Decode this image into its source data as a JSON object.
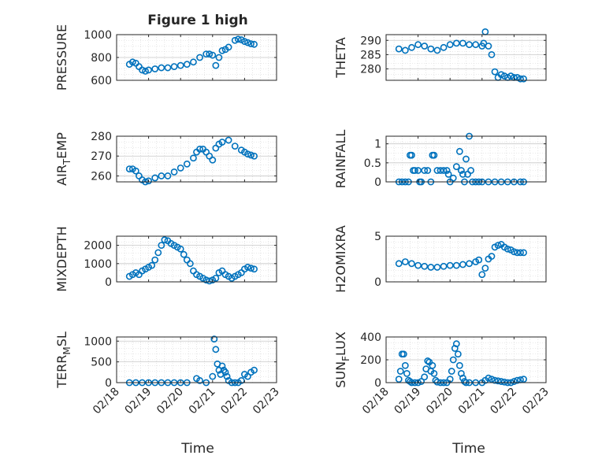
{
  "figure": {
    "title": "Figure 1 high",
    "xlabel": "Time",
    "marker_color": "#0072BD",
    "axis_color": "#262626",
    "grid_color": "#d3d3d3"
  },
  "chart_data": [
    {
      "type": "scatter",
      "ylabel": "PRESSURE",
      "ylim": [
        600,
        1000
      ],
      "yticks": [
        "600",
        "800",
        "1000"
      ],
      "xlim": [
        "2000-02-18",
        "2000-02-23"
      ],
      "xticks": [
        "02/18",
        "02/19",
        "02/20",
        "02/21",
        "02/22",
        "02/23"
      ],
      "grid": true,
      "x": [
        18.4,
        18.5,
        18.6,
        18.7,
        18.8,
        18.9,
        19.0,
        19.2,
        19.4,
        19.6,
        19.8,
        20.0,
        20.2,
        20.4,
        20.6,
        20.8,
        20.9,
        21.0,
        21.1,
        21.2,
        21.3,
        21.4,
        21.5,
        21.7,
        21.8,
        21.9,
        22.0,
        22.1,
        22.2,
        22.3
      ],
      "y": [
        740,
        760,
        750,
        720,
        690,
        680,
        690,
        700,
        710,
        710,
        720,
        730,
        740,
        760,
        800,
        830,
        830,
        820,
        730,
        800,
        860,
        870,
        890,
        950,
        960,
        955,
        940,
        930,
        920,
        915
      ]
    },
    {
      "type": "scatter",
      "ylabel": "THETA",
      "ylim": [
        276,
        292
      ],
      "yticks": [
        "280",
        "285",
        "290"
      ],
      "xlim": [
        "2000-02-18",
        "2000-02-23"
      ],
      "xticks": [
        "02/18",
        "02/19",
        "02/20",
        "02/21",
        "02/22",
        "02/23"
      ],
      "grid": true,
      "x": [
        18.4,
        18.6,
        18.8,
        19.0,
        19.2,
        19.4,
        19.6,
        19.8,
        20.0,
        20.2,
        20.4,
        20.6,
        20.8,
        21.0,
        21.05,
        21.1,
        21.2,
        21.3,
        21.4,
        21.5,
        21.6,
        21.7,
        21.8,
        21.9,
        22.0,
        22.1,
        22.2,
        22.3
      ],
      "y": [
        287,
        286.5,
        287.5,
        288.5,
        288,
        287,
        286.5,
        287.5,
        288.5,
        289,
        289,
        288.5,
        288.5,
        288,
        289,
        293,
        288,
        285,
        279,
        277,
        278,
        277.5,
        277,
        277.5,
        277,
        277,
        276.5,
        276.5
      ]
    },
    {
      "type": "scatter",
      "ylabel": "AIR_TEMP",
      "ylim": [
        257,
        280
      ],
      "yticks": [
        "260",
        "270",
        "280"
      ],
      "xlim": [
        "2000-02-18",
        "2000-02-23"
      ],
      "xticks": [
        "02/18",
        "02/19",
        "02/20",
        "02/21",
        "02/22",
        "02/23"
      ],
      "grid": true,
      "x": [
        18.4,
        18.5,
        18.6,
        18.7,
        18.8,
        18.9,
        19.0,
        19.2,
        19.4,
        19.6,
        19.8,
        20.0,
        20.2,
        20.4,
        20.5,
        20.6,
        20.7,
        20.8,
        20.9,
        21.0,
        21.1,
        21.2,
        21.3,
        21.5,
        21.7,
        21.9,
        22.0,
        22.1,
        22.2,
        22.3
      ],
      "y": [
        263.5,
        263.5,
        262.5,
        260,
        258,
        257,
        257.5,
        259,
        260,
        260,
        262,
        264,
        266,
        269,
        272,
        273.5,
        273.5,
        272,
        270,
        268,
        274,
        276,
        277,
        278,
        275,
        273,
        272,
        271,
        270.5,
        270
      ]
    },
    {
      "type": "scatter",
      "ylabel": "RAINFALL",
      "ylim": [
        0,
        1.2
      ],
      "yticks": [
        "0",
        "0.5",
        "1"
      ],
      "xlim": [
        "2000-02-18",
        "2000-02-23"
      ],
      "xticks": [
        "02/18",
        "02/19",
        "02/20",
        "02/21",
        "02/22",
        "02/23"
      ],
      "grid": true,
      "x": [
        18.4,
        18.5,
        18.6,
        18.7,
        18.75,
        18.8,
        18.85,
        18.9,
        19.0,
        19.05,
        19.1,
        19.2,
        19.3,
        19.4,
        19.45,
        19.5,
        19.6,
        19.7,
        19.8,
        19.9,
        19.95,
        20.0,
        20.1,
        20.2,
        20.3,
        20.35,
        20.4,
        20.45,
        20.5,
        20.55,
        20.6,
        20.65,
        20.7,
        20.8,
        20.9,
        21.0,
        21.2,
        21.4,
        21.6,
        21.8,
        22.0,
        22.2,
        22.3
      ],
      "y": [
        0,
        0,
        0,
        0,
        0.7,
        0.7,
        0.3,
        0.3,
        0.3,
        0,
        0,
        0.3,
        0.3,
        0,
        0.7,
        0.7,
        0.3,
        0.3,
        0.3,
        0.3,
        0.2,
        0,
        0.1,
        0.4,
        0.8,
        0.3,
        0.2,
        0,
        0.6,
        0.2,
        1.2,
        0.3,
        0,
        0,
        0,
        0,
        0,
        0,
        0,
        0,
        0,
        0,
        0
      ]
    },
    {
      "type": "scatter",
      "ylabel": "MIXDEPTH",
      "ylim": [
        0,
        2500
      ],
      "yticks": [
        "0",
        "1000",
        "2000"
      ],
      "xlim": [
        "2000-02-18",
        "2000-02-23"
      ],
      "xticks": [
        "02/18",
        "02/19",
        "02/20",
        "02/21",
        "02/22",
        "02/23"
      ],
      "grid": true,
      "x": [
        18.4,
        18.5,
        18.6,
        18.7,
        18.8,
        18.9,
        19.0,
        19.1,
        19.2,
        19.3,
        19.4,
        19.5,
        19.6,
        19.7,
        19.8,
        19.9,
        20.0,
        20.1,
        20.2,
        20.3,
        20.4,
        20.5,
        20.6,
        20.7,
        20.8,
        20.9,
        21.0,
        21.1,
        21.2,
        21.3,
        21.4,
        21.5,
        21.6,
        21.7,
        21.8,
        21.9,
        22.0,
        22.1,
        22.2,
        22.3
      ],
      "y": [
        300,
        400,
        500,
        400,
        600,
        700,
        800,
        900,
        1200,
        1600,
        2000,
        2300,
        2250,
        2100,
        2000,
        1900,
        1800,
        1500,
        1200,
        1000,
        600,
        400,
        300,
        200,
        100,
        50,
        100,
        200,
        500,
        600,
        400,
        300,
        200,
        300,
        400,
        500,
        700,
        800,
        750,
        700
      ]
    },
    {
      "type": "scatter",
      "ylabel": "H2OMIXRA",
      "ylim": [
        0,
        5
      ],
      "yticks": [
        "0",
        "5"
      ],
      "xlim": [
        "2000-02-18",
        "2000-02-23"
      ],
      "xticks": [
        "02/18",
        "02/19",
        "02/20",
        "02/21",
        "02/22",
        "02/23"
      ],
      "grid": true,
      "x": [
        18.4,
        18.6,
        18.8,
        19.0,
        19.2,
        19.4,
        19.6,
        19.8,
        20.0,
        20.2,
        20.4,
        20.6,
        20.8,
        20.9,
        21.0,
        21.1,
        21.2,
        21.3,
        21.4,
        21.5,
        21.6,
        21.7,
        21.8,
        21.9,
        22.0,
        22.1,
        22.2,
        22.3
      ],
      "y": [
        2.0,
        2.2,
        2.0,
        1.8,
        1.7,
        1.6,
        1.6,
        1.7,
        1.8,
        1.8,
        1.9,
        2.0,
        2.2,
        2.4,
        0.8,
        1.5,
        2.5,
        2.8,
        3.8,
        4.0,
        4.1,
        3.8,
        3.6,
        3.5,
        3.3,
        3.2,
        3.2,
        3.2
      ]
    },
    {
      "type": "scatter",
      "ylabel": "TERR_MSL",
      "ylim": [
        0,
        1100
      ],
      "yticks": [
        "0",
        "500",
        "1000"
      ],
      "xlim": [
        "2000-02-18",
        "2000-02-23"
      ],
      "xticks": [
        "02/18",
        "02/19",
        "02/20",
        "02/21",
        "02/22",
        "02/23"
      ],
      "grid": true,
      "x": [
        18.4,
        18.6,
        18.8,
        19.0,
        19.2,
        19.4,
        19.6,
        19.8,
        20.0,
        20.2,
        20.5,
        20.6,
        20.8,
        21.0,
        21.05,
        21.1,
        21.15,
        21.2,
        21.25,
        21.3,
        21.35,
        21.4,
        21.45,
        21.5,
        21.6,
        21.7,
        21.8,
        21.9,
        22.0,
        22.1,
        22.2,
        22.3
      ],
      "y": [
        0,
        0,
        0,
        0,
        0,
        0,
        0,
        0,
        0,
        0,
        100,
        50,
        0,
        150,
        1050,
        800,
        450,
        300,
        200,
        400,
        300,
        250,
        150,
        50,
        0,
        0,
        0,
        50,
        200,
        150,
        250,
        300
      ]
    },
    {
      "type": "scatter",
      "ylabel": "SUN_FLUX",
      "ylim": [
        0,
        400
      ],
      "yticks": [
        "0",
        "200",
        "400"
      ],
      "xlim": [
        "2000-02-18",
        "2000-02-23"
      ],
      "xticks": [
        "02/18",
        "02/19",
        "02/20",
        "02/21",
        "02/22",
        "02/23"
      ],
      "grid": true,
      "x": [
        18.4,
        18.45,
        18.5,
        18.55,
        18.6,
        18.65,
        18.7,
        18.75,
        18.8,
        18.9,
        19.0,
        19.1,
        19.2,
        19.25,
        19.3,
        19.35,
        19.4,
        19.45,
        19.5,
        19.55,
        19.6,
        19.7,
        19.8,
        19.9,
        20.0,
        20.05,
        20.1,
        20.15,
        20.2,
        20.25,
        20.3,
        20.35,
        20.4,
        20.45,
        20.5,
        20.6,
        20.8,
        21.0,
        21.1,
        21.2,
        21.3,
        21.4,
        21.5,
        21.6,
        21.7,
        21.8,
        21.9,
        22.0,
        22.1,
        22.2,
        22.3
      ],
      "y": [
        30,
        100,
        250,
        250,
        150,
        80,
        20,
        10,
        0,
        0,
        0,
        10,
        50,
        120,
        190,
        180,
        100,
        150,
        80,
        20,
        5,
        0,
        0,
        0,
        30,
        100,
        200,
        300,
        340,
        250,
        150,
        80,
        40,
        10,
        0,
        0,
        0,
        0,
        20,
        40,
        30,
        20,
        15,
        10,
        5,
        0,
        0,
        10,
        20,
        25,
        30
      ]
    }
  ]
}
